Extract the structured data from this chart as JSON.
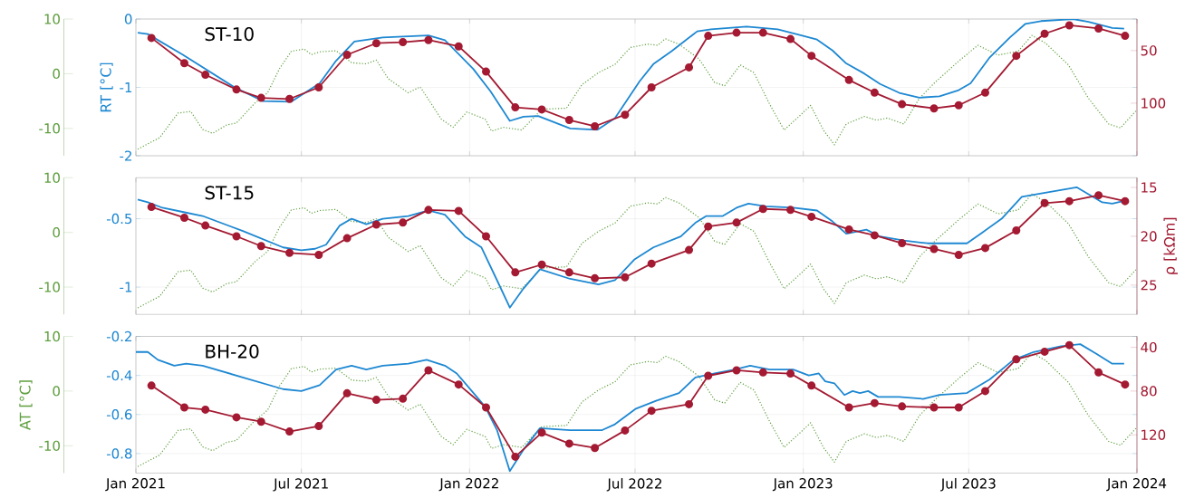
{
  "chart_data": [
    {
      "type": "line",
      "title": "ST-10",
      "ylabel": "RT [°C]",
      "xlim": [
        "2021-01-01",
        "2024-01-01"
      ],
      "xticks": [
        {
          "value": "2021-01-01",
          "label": null
        },
        {
          "value": "2021-07-01",
          "label": null
        },
        {
          "value": "2022-01-01",
          "label": null
        },
        {
          "value": "2022-07-01",
          "label": null
        },
        {
          "value": "2023-01-01",
          "label": null
        },
        {
          "value": "2023-07-01",
          "label": null
        },
        {
          "value": "2024-01-01",
          "label": null
        }
      ],
      "ylim": [
        -2,
        0
      ],
      "yticks": [
        -2,
        -1,
        0
      ],
      "y2lim": [
        150,
        20
      ],
      "y2ticks": [
        50,
        100
      ],
      "y3lim": [
        -15,
        10
      ],
      "y3ticks": [
        -10,
        0,
        10
      ],
      "grid": true,
      "tick_labels": "y",
      "series": [
        {
          "axis": "y3",
          "color": "#5f9f3f",
          "line_style": "dotted",
          "x": [
            "2021-01-03",
            "2021-01-27",
            "2021-02-16",
            "2021-03-02",
            "2021-03-15",
            "2021-03-26",
            "2021-04-10",
            "2021-04-21",
            "2021-05-11",
            "2021-05-25",
            "2021-06-07",
            "2021-06-20",
            "2021-07-04",
            "2021-07-12",
            "2021-07-21",
            "2021-08-08",
            "2021-08-25",
            "2021-09-10",
            "2021-09-21",
            "2021-10-04",
            "2021-10-26",
            "2021-11-08",
            "2021-12-01",
            "2021-12-14",
            "2021-12-29",
            "2022-01-18",
            "2022-01-25",
            "2022-02-07",
            "2022-02-27",
            "2022-03-21",
            "2022-04-17",
            "2022-05-04",
            "2022-05-22",
            "2022-06-09",
            "2022-06-26",
            "2022-07-15",
            "2022-07-26",
            "2022-08-03",
            "2022-08-18",
            "2022-09-09",
            "2022-09-26",
            "2022-10-07",
            "2022-10-24",
            "2022-11-08",
            "2022-11-25",
            "2022-12-11",
            "2022-12-30",
            "2023-01-09",
            "2023-01-23",
            "2023-02-04",
            "2023-02-17",
            "2023-03-09",
            "2023-03-22",
            "2023-04-03",
            "2023-04-21",
            "2023-05-08",
            "2023-05-25",
            "2023-06-20",
            "2023-07-11",
            "2023-08-02",
            "2023-08-24",
            "2023-09-08",
            "2023-09-23",
            "2023-10-18",
            "2023-11-09",
            "2023-12-01",
            "2023-12-14",
            "2024-01-01"
          ],
          "values": [
            -13.8,
            -11.7,
            -7.2,
            -6.9,
            -10.2,
            -10.9,
            -9.4,
            -9.0,
            -5.4,
            -3.5,
            0.9,
            4.1,
            4.5,
            3.5,
            4.0,
            4.2,
            2.0,
            1.8,
            2.5,
            -0.9,
            -3.5,
            -2.4,
            -8.3,
            -9.8,
            -7.0,
            -8.3,
            -10.5,
            -9.8,
            -10.3,
            -6.5,
            -6.3,
            -2.0,
            0.2,
            1.7,
            4.8,
            5.4,
            5.2,
            6.4,
            5.4,
            2.7,
            -1.6,
            -2.2,
            1.6,
            0.2,
            -5.5,
            -10.3,
            -7.4,
            -5.8,
            -10.3,
            -13.0,
            -9.2,
            -7.8,
            -8.5,
            -8.1,
            -9.2,
            -4.5,
            -1.6,
            2.3,
            5.2,
            3.4,
            4.1,
            7.0,
            5.6,
            1.6,
            -4.5,
            -9.2,
            -9.9,
            -6.6
          ]
        },
        {
          "axis": "y",
          "color": "#1e88d2",
          "line_style": "solid",
          "x": [
            "2021-01-03",
            "2021-01-14",
            "2021-02-21",
            "2021-04-19",
            "2021-05-20",
            "2021-06-20",
            "2021-07-21",
            "2021-08-08",
            "2021-08-28",
            "2021-09-28",
            "2021-11-17",
            "2021-12-05",
            "2022-01-05",
            "2022-01-24",
            "2022-02-14",
            "2022-03-01",
            "2022-03-17",
            "2022-04-21",
            "2022-05-21",
            "2022-06-09",
            "2022-07-06",
            "2022-07-21",
            "2022-08-10",
            "2022-09-07",
            "2022-09-22",
            "2022-10-31",
            "2022-12-04",
            "2022-12-30",
            "2023-01-16",
            "2023-02-02",
            "2023-02-17",
            "2023-03-09",
            "2023-03-26",
            "2023-04-16",
            "2023-05-08",
            "2023-05-30",
            "2023-06-20",
            "2023-07-03",
            "2023-07-24",
            "2023-08-15",
            "2023-09-01",
            "2023-09-18",
            "2023-10-23",
            "2023-11-09",
            "2023-12-05",
            "2023-12-18"
          ],
          "values": [
            -0.2,
            -0.22,
            -0.52,
            -1.0,
            -1.2,
            -1.21,
            -0.94,
            -0.61,
            -0.33,
            -0.27,
            -0.24,
            -0.31,
            -0.73,
            -1.06,
            -1.49,
            -1.43,
            -1.42,
            -1.6,
            -1.62,
            -1.45,
            -0.91,
            -0.66,
            -0.47,
            -0.18,
            -0.15,
            -0.11,
            -0.15,
            -0.24,
            -0.3,
            -0.46,
            -0.65,
            -0.8,
            -0.95,
            -1.08,
            -1.15,
            -1.13,
            -1.04,
            -0.94,
            -0.56,
            -0.27,
            -0.07,
            -0.03,
            0.0,
            -0.04,
            -0.13,
            -0.14
          ]
        },
        {
          "axis": "y2",
          "color": "#a31a32",
          "line_style": "solid",
          "marker": "circle",
          "x": [
            "2021-01-18",
            "2021-02-23",
            "2021-03-18",
            "2021-04-21",
            "2021-05-18",
            "2021-06-18",
            "2021-07-20",
            "2021-08-20",
            "2021-09-21",
            "2021-10-20",
            "2021-11-17",
            "2021-12-20",
            "2022-01-19",
            "2022-02-20",
            "2022-03-21",
            "2022-04-20",
            "2022-05-18",
            "2022-06-20",
            "2022-07-19",
            "2022-08-29",
            "2022-09-19",
            "2022-10-20",
            "2022-11-18",
            "2022-12-18",
            "2023-01-10",
            "2023-02-20",
            "2023-03-20",
            "2023-04-19",
            "2023-05-24",
            "2023-06-20",
            "2023-07-19",
            "2023-08-22",
            "2023-09-22",
            "2023-10-19",
            "2023-11-20",
            "2023-12-19"
          ],
          "values": [
            38,
            62,
            73,
            87,
            95,
            96,
            85,
            54,
            43,
            42,
            40,
            46,
            70,
            104,
            106,
            116,
            122,
            111,
            85,
            66,
            36,
            33,
            33,
            39,
            55,
            78,
            90,
            101,
            105,
            102,
            90,
            55,
            34,
            26,
            29,
            36
          ]
        }
      ]
    },
    {
      "type": "line",
      "title": "ST-15",
      "y2label": "ρ [kΩm]",
      "xlim": [
        "2021-01-01",
        "2024-01-01"
      ],
      "xticks": [
        {
          "value": "2021-01-01",
          "label": null
        },
        {
          "value": "2021-07-01",
          "label": null
        },
        {
          "value": "2022-01-01",
          "label": null
        },
        {
          "value": "2022-07-01",
          "label": null
        },
        {
          "value": "2023-01-01",
          "label": null
        },
        {
          "value": "2023-07-01",
          "label": null
        },
        {
          "value": "2024-01-01",
          "label": null
        }
      ],
      "ylim": [
        -1.2,
        -0.2
      ],
      "yticks": [
        -1,
        -0.5
      ],
      "y2lim": [
        28,
        14
      ],
      "y2ticks": [
        15,
        20,
        25
      ],
      "y3lim": [
        -15,
        10
      ],
      "y3ticks": [
        -10,
        0,
        10
      ],
      "grid": true,
      "tick_labels": "y",
      "series": [
        {
          "axis": "y3",
          "color": "#5f9f3f",
          "line_style": "dotted",
          "x": [
            "2021-01-03",
            "2021-01-27",
            "2021-02-16",
            "2021-03-02",
            "2021-03-15",
            "2021-03-26",
            "2021-04-10",
            "2021-04-21",
            "2021-05-11",
            "2021-05-25",
            "2021-06-07",
            "2021-06-20",
            "2021-07-04",
            "2021-07-12",
            "2021-07-21",
            "2021-08-08",
            "2021-08-25",
            "2021-09-10",
            "2021-09-21",
            "2021-10-04",
            "2021-10-26",
            "2021-11-08",
            "2021-12-01",
            "2021-12-14",
            "2021-12-29",
            "2022-01-18",
            "2022-01-25",
            "2022-02-07",
            "2022-02-27",
            "2022-03-21",
            "2022-04-17",
            "2022-05-04",
            "2022-05-22",
            "2022-06-09",
            "2022-06-26",
            "2022-07-15",
            "2022-07-26",
            "2022-08-03",
            "2022-08-18",
            "2022-09-09",
            "2022-09-26",
            "2022-10-07",
            "2022-10-24",
            "2022-11-08",
            "2022-11-25",
            "2022-12-11",
            "2022-12-30",
            "2023-01-09",
            "2023-01-23",
            "2023-02-04",
            "2023-02-17",
            "2023-03-09",
            "2023-03-22",
            "2023-04-03",
            "2023-04-21",
            "2023-05-08",
            "2023-05-25",
            "2023-06-20",
            "2023-07-11",
            "2023-08-02",
            "2023-08-24",
            "2023-09-08",
            "2023-09-23",
            "2023-10-18",
            "2023-11-09",
            "2023-12-01",
            "2023-12-14",
            "2024-01-01"
          ],
          "values": [
            -13.8,
            -11.7,
            -7.2,
            -6.9,
            -10.2,
            -10.9,
            -9.4,
            -9.0,
            -5.4,
            -3.5,
            0.9,
            4.1,
            4.5,
            3.5,
            4.0,
            4.2,
            2.0,
            1.8,
            2.5,
            -0.9,
            -3.5,
            -2.4,
            -8.3,
            -9.8,
            -7.0,
            -8.3,
            -10.5,
            -9.8,
            -10.3,
            -6.5,
            -6.3,
            -2.0,
            0.2,
            1.7,
            4.8,
            5.4,
            5.2,
            6.4,
            5.4,
            2.7,
            -1.6,
            -2.2,
            1.6,
            0.2,
            -5.5,
            -10.3,
            -7.4,
            -5.8,
            -10.3,
            -13.0,
            -9.2,
            -7.8,
            -8.5,
            -8.1,
            -9.2,
            -4.5,
            -1.6,
            2.3,
            5.2,
            3.4,
            4.1,
            7.0,
            5.6,
            1.6,
            -4.5,
            -9.2,
            -9.9,
            -6.6
          ]
        },
        {
          "axis": "y",
          "color": "#1e88d2",
          "line_style": "solid",
          "x": [
            "2021-01-03",
            "2021-01-14",
            "2021-01-30",
            "2021-02-21",
            "2021-03-15",
            "2021-04-28",
            "2021-06-11",
            "2021-07-01",
            "2021-07-16",
            "2021-07-28",
            "2021-08-12",
            "2021-08-25",
            "2021-09-10",
            "2021-09-28",
            "2021-10-26",
            "2021-11-17",
            "2021-12-05",
            "2021-12-27",
            "2022-01-14",
            "2022-01-31",
            "2022-02-14",
            "2022-03-01",
            "2022-03-19",
            "2022-04-21",
            "2022-05-22",
            "2022-06-09",
            "2022-06-30",
            "2022-07-21",
            "2022-08-20",
            "2022-09-05",
            "2022-09-17",
            "2022-10-05",
            "2022-10-20",
            "2022-11-02",
            "2022-11-21",
            "2022-12-21",
            "2023-01-16",
            "2023-02-02",
            "2023-02-17",
            "2023-03-11",
            "2023-03-26",
            "2023-04-21",
            "2023-05-17",
            "2023-06-11",
            "2023-06-29",
            "2023-07-16",
            "2023-08-06",
            "2023-08-28",
            "2023-09-14",
            "2023-10-27",
            "2023-11-24",
            "2023-12-05",
            "2023-12-18"
          ],
          "values": [
            -0.36,
            -0.38,
            -0.42,
            -0.45,
            -0.48,
            -0.59,
            -0.71,
            -0.73,
            -0.72,
            -0.69,
            -0.55,
            -0.5,
            -0.54,
            -0.5,
            -0.48,
            -0.44,
            -0.47,
            -0.63,
            -0.71,
            -0.95,
            -1.15,
            -1.01,
            -0.87,
            -0.94,
            -0.98,
            -0.95,
            -0.8,
            -0.71,
            -0.63,
            -0.53,
            -0.48,
            -0.48,
            -0.42,
            -0.39,
            -0.41,
            -0.42,
            -0.44,
            -0.52,
            -0.61,
            -0.58,
            -0.63,
            -0.66,
            -0.68,
            -0.68,
            -0.68,
            -0.6,
            -0.5,
            -0.34,
            -0.32,
            -0.27,
            -0.38,
            -0.39,
            -0.37
          ]
        },
        {
          "axis": "y2",
          "color": "#a31a32",
          "line_style": "solid",
          "marker": "circle",
          "x": [
            "2021-01-18",
            "2021-02-23",
            "2021-03-18",
            "2021-04-21",
            "2021-05-18",
            "2021-06-18",
            "2021-07-20",
            "2021-08-20",
            "2021-09-21",
            "2021-10-20",
            "2021-11-17",
            "2021-12-20",
            "2022-01-19",
            "2022-02-20",
            "2022-03-21",
            "2022-04-20",
            "2022-05-18",
            "2022-06-20",
            "2022-07-19",
            "2022-08-29",
            "2022-09-19",
            "2022-10-20",
            "2022-11-18",
            "2022-12-18",
            "2023-01-10",
            "2023-02-20",
            "2023-03-20",
            "2023-04-19",
            "2023-05-24",
            "2023-06-20",
            "2023-07-19",
            "2023-08-22",
            "2023-09-22",
            "2023-10-19",
            "2023-11-20",
            "2023-12-19"
          ],
          "values": [
            17.0,
            18.1,
            18.9,
            20.0,
            21.0,
            21.7,
            21.9,
            20.2,
            18.8,
            18.6,
            17.3,
            17.4,
            20.0,
            23.7,
            22.9,
            23.7,
            24.3,
            24.2,
            22.8,
            21.4,
            19.0,
            18.6,
            17.2,
            17.3,
            18.0,
            19.3,
            19.9,
            20.7,
            21.3,
            21.9,
            21.2,
            19.4,
            16.6,
            16.4,
            15.8,
            16.4
          ]
        }
      ]
    },
    {
      "type": "line",
      "title": "BH-20",
      "y3label": "AT [°C]",
      "xlim": [
        "2021-01-01",
        "2024-01-01"
      ],
      "xticks": [
        {
          "value": "2021-01-01",
          "label": "Jan 2021"
        },
        {
          "value": "2021-07-01",
          "label": "Jul 2021"
        },
        {
          "value": "2022-01-01",
          "label": "Jan 2022"
        },
        {
          "value": "2022-07-01",
          "label": "Jul 2022"
        },
        {
          "value": "2023-01-01",
          "label": "Jan 2023"
        },
        {
          "value": "2023-07-01",
          "label": "Jul 2023"
        },
        {
          "value": "2024-01-01",
          "label": "Jan 2024"
        }
      ],
      "ylim": [
        -0.9,
        -0.2
      ],
      "yticks": [
        -0.8,
        -0.6,
        -0.4,
        -0.2
      ],
      "y2lim": [
        155,
        30
      ],
      "y2ticks": [
        40,
        80,
        120
      ],
      "y3lim": [
        -15,
        10
      ],
      "y3ticks": [
        -10,
        0,
        10
      ],
      "grid": true,
      "series": [
        {
          "axis": "y3",
          "color": "#5f9f3f",
          "line_style": "dotted",
          "x": [
            "2021-01-03",
            "2021-01-27",
            "2021-02-16",
            "2021-03-02",
            "2021-03-15",
            "2021-03-26",
            "2021-04-10",
            "2021-04-21",
            "2021-05-11",
            "2021-05-25",
            "2021-06-07",
            "2021-06-20",
            "2021-07-04",
            "2021-07-12",
            "2021-07-21",
            "2021-08-08",
            "2021-08-25",
            "2021-09-10",
            "2021-09-21",
            "2021-10-04",
            "2021-10-26",
            "2021-11-08",
            "2021-12-01",
            "2021-12-14",
            "2021-12-29",
            "2022-01-18",
            "2022-01-25",
            "2022-02-07",
            "2022-02-27",
            "2022-03-21",
            "2022-04-17",
            "2022-05-04",
            "2022-05-22",
            "2022-06-09",
            "2022-06-26",
            "2022-07-15",
            "2022-07-26",
            "2022-08-03",
            "2022-08-18",
            "2022-09-09",
            "2022-09-26",
            "2022-10-07",
            "2022-10-24",
            "2022-11-08",
            "2022-11-25",
            "2022-12-11",
            "2022-12-30",
            "2023-01-09",
            "2023-01-23",
            "2023-02-04",
            "2023-02-17",
            "2023-03-09",
            "2023-03-22",
            "2023-04-03",
            "2023-04-21",
            "2023-05-08",
            "2023-05-25",
            "2023-06-20",
            "2023-07-11",
            "2023-08-02",
            "2023-08-24",
            "2023-09-08",
            "2023-09-23",
            "2023-10-18",
            "2023-11-09",
            "2023-12-01",
            "2023-12-14",
            "2024-01-01"
          ],
          "values": [
            -13.8,
            -11.7,
            -7.2,
            -6.9,
            -10.2,
            -10.9,
            -9.4,
            -9.0,
            -5.4,
            -3.5,
            0.9,
            4.1,
            4.5,
            3.5,
            4.0,
            4.2,
            2.0,
            1.8,
            2.5,
            -0.9,
            -3.5,
            -2.4,
            -8.3,
            -9.8,
            -7.0,
            -8.3,
            -10.5,
            -9.8,
            -10.3,
            -6.5,
            -6.3,
            -2.0,
            0.2,
            1.7,
            4.8,
            5.4,
            5.2,
            6.4,
            5.4,
            2.7,
            -1.6,
            -2.2,
            1.6,
            0.2,
            -5.5,
            -10.3,
            -7.4,
            -5.8,
            -10.3,
            -13.0,
            -9.2,
            -7.8,
            -8.5,
            -8.1,
            -9.2,
            -4.5,
            -1.6,
            2.3,
            5.2,
            3.4,
            4.1,
            7.0,
            5.6,
            1.6,
            -4.5,
            -9.2,
            -9.9,
            -6.6
          ]
        },
        {
          "axis": "y",
          "color": "#1e88d2",
          "line_style": "solid",
          "x": [
            "2021-01-01",
            "2021-01-14",
            "2021-01-25",
            "2021-02-12",
            "2021-02-25",
            "2021-03-15",
            "2021-04-28",
            "2021-06-11",
            "2021-07-01",
            "2021-07-21",
            "2021-08-08",
            "2021-08-25",
            "2021-09-10",
            "2021-09-28",
            "2021-10-26",
            "2021-11-15",
            "2021-12-05",
            "2021-12-18",
            "2022-01-18",
            "2022-01-31",
            "2022-02-14",
            "2022-03-01",
            "2022-03-19",
            "2022-04-21",
            "2022-05-26",
            "2022-06-09",
            "2022-07-02",
            "2022-07-24",
            "2022-08-18",
            "2022-09-05",
            "2022-09-26",
            "2022-10-18",
            "2022-11-04",
            "2022-11-25",
            "2022-12-21",
            "2023-01-07",
            "2023-01-18",
            "2023-01-25",
            "2023-02-04",
            "2023-02-15",
            "2023-02-24",
            "2023-03-04",
            "2023-03-13",
            "2023-03-24",
            "2023-04-16",
            "2023-05-12",
            "2023-05-30",
            "2023-06-29",
            "2023-07-24",
            "2023-08-19",
            "2023-09-10",
            "2023-10-10",
            "2023-10-31",
            "2023-11-18",
            "2023-12-05",
            "2023-12-18"
          ],
          "values": [
            -0.28,
            -0.28,
            -0.32,
            -0.35,
            -0.34,
            -0.35,
            -0.41,
            -0.47,
            -0.48,
            -0.45,
            -0.37,
            -0.35,
            -0.37,
            -0.35,
            -0.34,
            -0.32,
            -0.35,
            -0.39,
            -0.56,
            -0.68,
            -0.89,
            -0.78,
            -0.67,
            -0.68,
            -0.68,
            -0.65,
            -0.57,
            -0.53,
            -0.49,
            -0.41,
            -0.39,
            -0.37,
            -0.35,
            -0.37,
            -0.37,
            -0.4,
            -0.39,
            -0.43,
            -0.44,
            -0.5,
            -0.48,
            -0.49,
            -0.48,
            -0.51,
            -0.51,
            -0.52,
            -0.5,
            -0.49,
            -0.42,
            -0.32,
            -0.28,
            -0.25,
            -0.24,
            -0.29,
            -0.34,
            -0.34
          ]
        },
        {
          "axis": "y2",
          "color": "#a31a32",
          "line_style": "solid",
          "marker": "circle",
          "x": [
            "2021-01-18",
            "2021-02-23",
            "2021-03-18",
            "2021-04-21",
            "2021-05-18",
            "2021-06-18",
            "2021-07-20",
            "2021-08-20",
            "2021-09-21",
            "2021-10-20",
            "2021-11-17",
            "2021-12-20",
            "2022-01-19",
            "2022-02-20",
            "2022-03-21",
            "2022-04-20",
            "2022-05-18",
            "2022-06-20",
            "2022-07-19",
            "2022-08-29",
            "2022-09-19",
            "2022-10-20",
            "2022-11-18",
            "2022-12-18",
            "2023-01-10",
            "2023-02-20",
            "2023-03-20",
            "2023-04-19",
            "2023-05-24",
            "2023-06-20",
            "2023-07-19",
            "2023-08-22",
            "2023-09-22",
            "2023-10-19",
            "2023-11-20",
            "2023-12-19"
          ],
          "values": [
            75,
            95,
            97,
            104,
            108,
            117,
            112,
            82,
            88,
            87,
            61,
            74,
            95,
            140,
            118,
            128,
            132,
            116,
            98,
            92,
            66,
            61,
            63,
            64,
            75,
            95,
            91,
            94,
            95,
            95,
            80,
            51,
            44,
            38,
            63,
            74
          ]
        }
      ]
    }
  ]
}
